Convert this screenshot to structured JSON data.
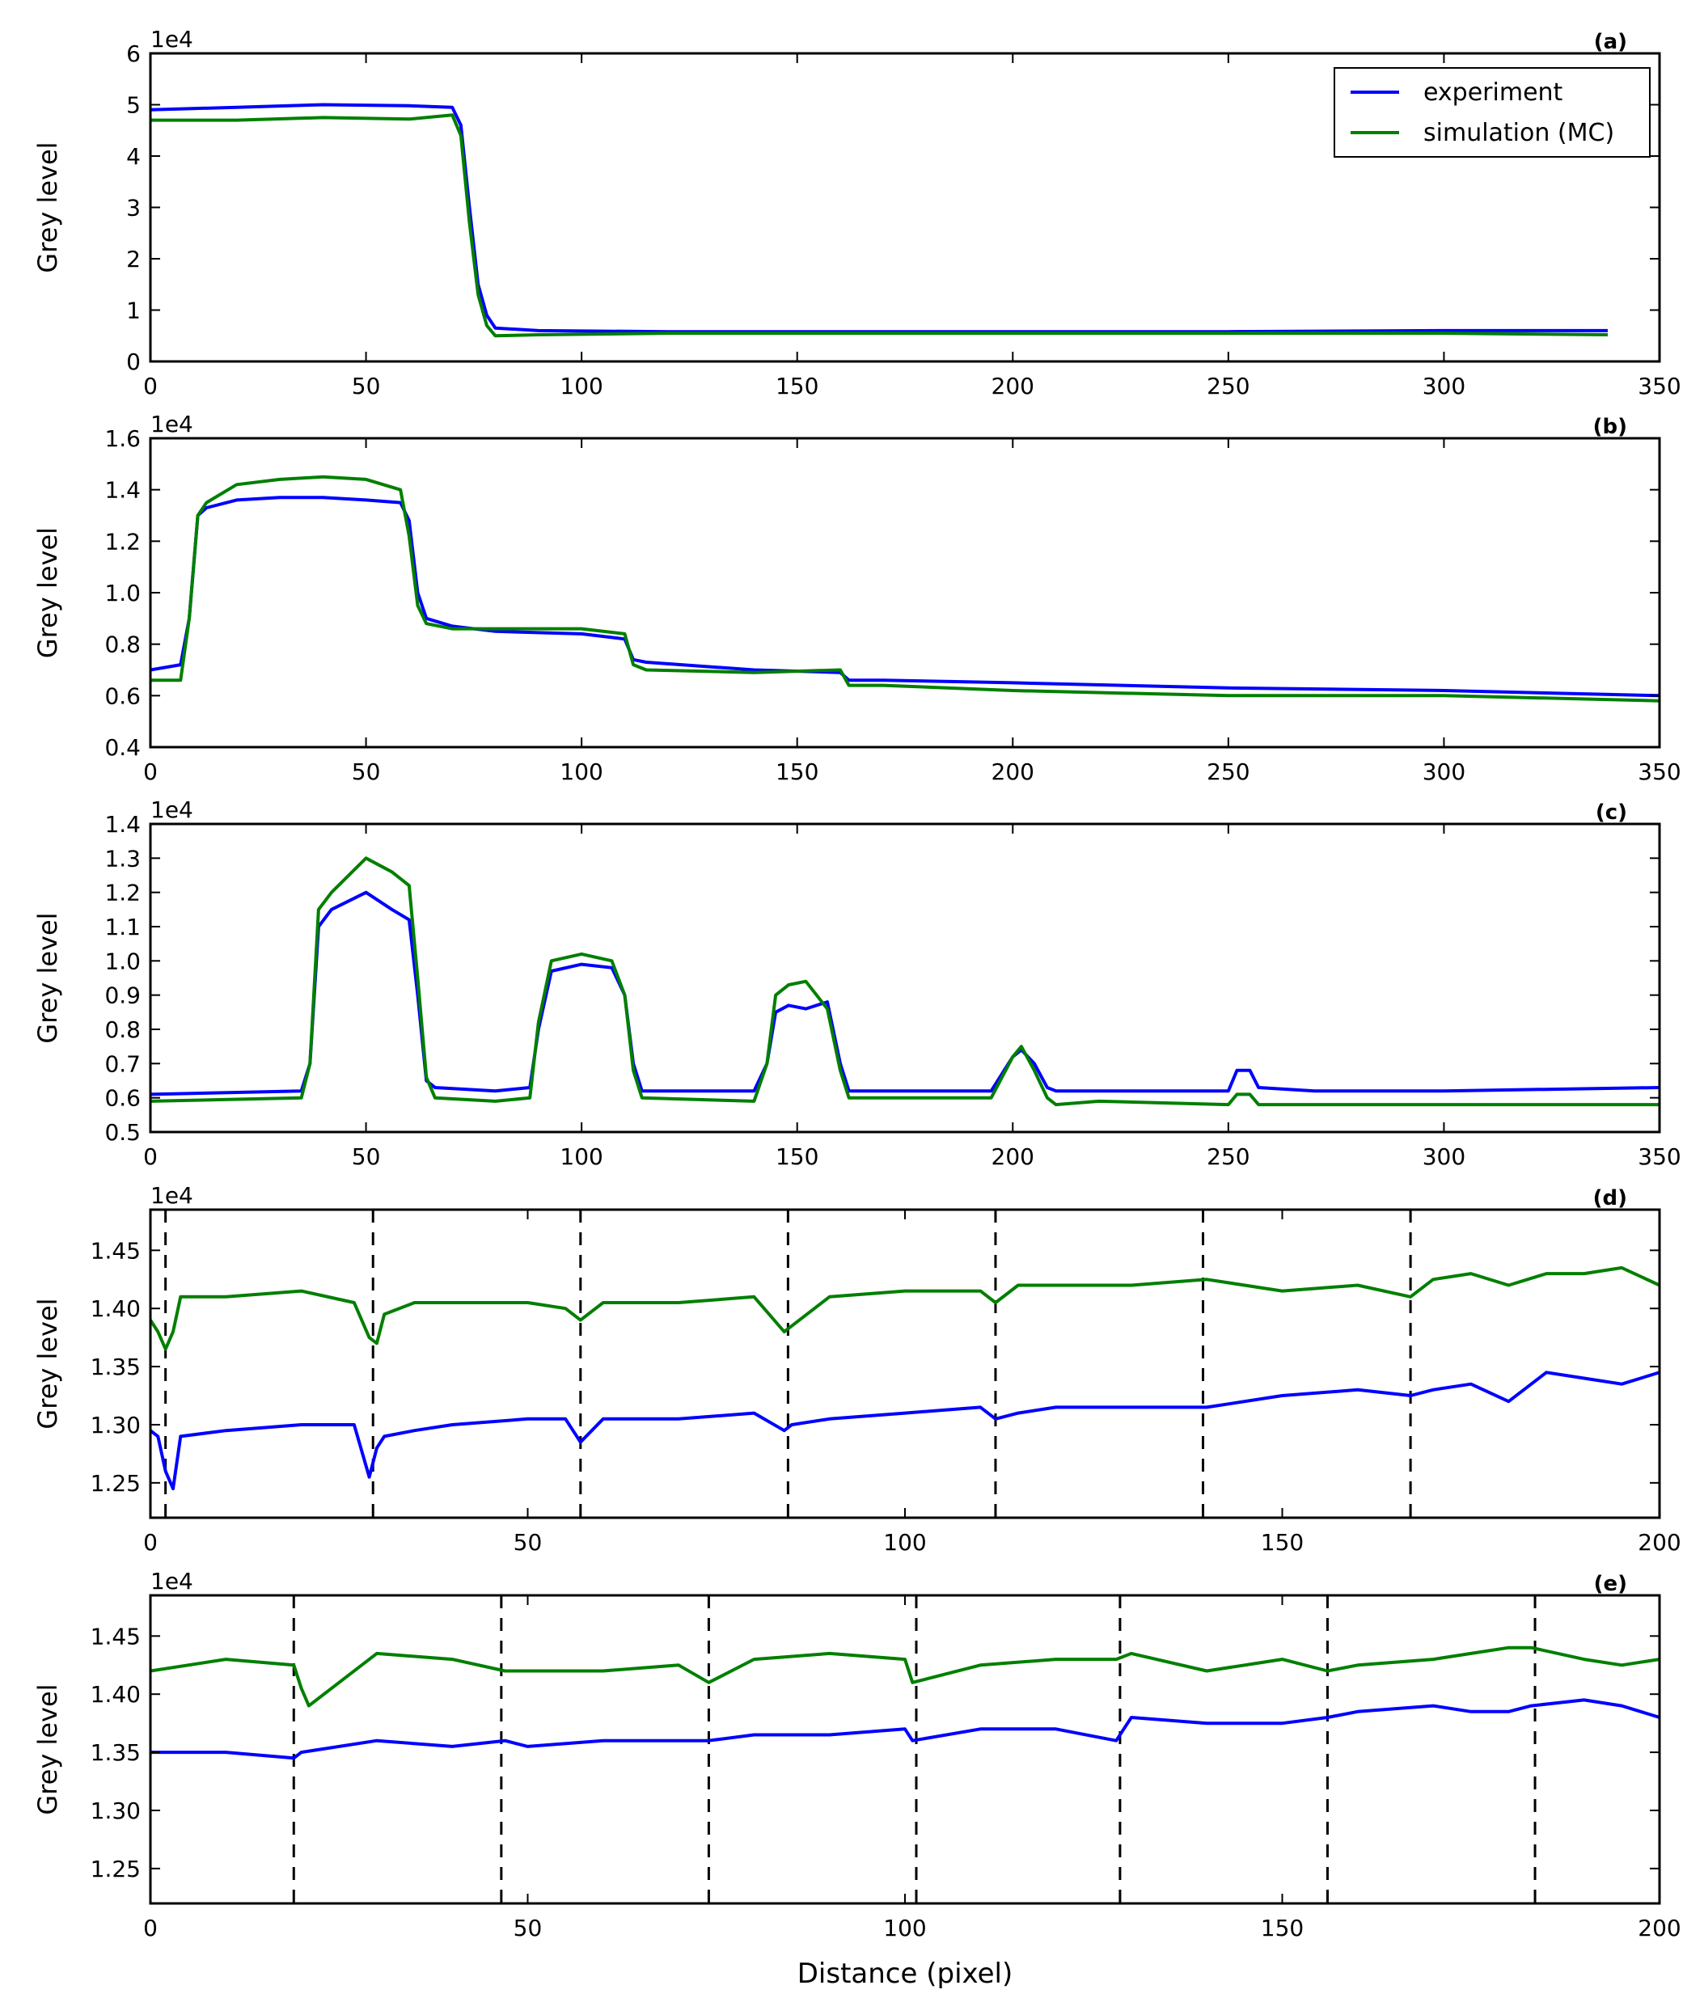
{
  "colors": {
    "experiment": "#0000ff",
    "simulation": "#007f00",
    "axes": "#000000",
    "vline": "#000000"
  },
  "chart_data": [
    {
      "type": "line",
      "panel_label": "(a)",
      "ylabel": "Grey level",
      "xlabel": "",
      "multiplier": "1e4",
      "xlim": [
        0,
        350
      ],
      "ylim": [
        0,
        6
      ],
      "xticks": [
        "0",
        "50",
        "100",
        "150",
        "200",
        "250",
        "300",
        "350"
      ],
      "yticks": [
        "0",
        "1",
        "2",
        "3",
        "4",
        "5",
        "6"
      ],
      "legend": {
        "position": "top-right",
        "entries": [
          "experiment",
          "simulation (MC)"
        ]
      },
      "series": [
        {
          "name": "experiment",
          "x": [
            0,
            20,
            40,
            60,
            70,
            72,
            74,
            76,
            78,
            80,
            90,
            120,
            150,
            200,
            250,
            300,
            338
          ],
          "y": [
            4.9,
            4.95,
            5.0,
            4.98,
            4.95,
            4.6,
            3.0,
            1.5,
            0.9,
            0.65,
            0.6,
            0.58,
            0.58,
            0.58,
            0.58,
            0.6,
            0.6
          ]
        },
        {
          "name": "simulation (MC)",
          "x": [
            0,
            20,
            40,
            60,
            70,
            72,
            74,
            76,
            78,
            80,
            90,
            120,
            150,
            200,
            250,
            300,
            338
          ],
          "y": [
            4.7,
            4.7,
            4.75,
            4.72,
            4.8,
            4.4,
            2.7,
            1.3,
            0.7,
            0.5,
            0.52,
            0.55,
            0.55,
            0.55,
            0.55,
            0.55,
            0.52
          ]
        }
      ],
      "vlines": []
    },
    {
      "type": "line",
      "panel_label": "(b)",
      "ylabel": "Grey level",
      "xlabel": "",
      "multiplier": "1e4",
      "xlim": [
        0,
        350
      ],
      "ylim": [
        0.4,
        1.6
      ],
      "xticks": [
        "0",
        "50",
        "100",
        "150",
        "200",
        "250",
        "300",
        "350"
      ],
      "yticks": [
        "0.4",
        "0.6",
        "0.8",
        "1.0",
        "1.2",
        "1.4",
        "1.6"
      ],
      "series": [
        {
          "name": "experiment",
          "x": [
            0,
            7,
            9,
            11,
            13,
            20,
            30,
            40,
            50,
            58,
            60,
            62,
            64,
            70,
            80,
            100,
            110,
            112,
            115,
            140,
            160,
            162,
            170,
            200,
            250,
            300,
            350
          ],
          "y": [
            0.7,
            0.72,
            0.9,
            1.3,
            1.33,
            1.36,
            1.37,
            1.37,
            1.36,
            1.35,
            1.28,
            1.0,
            0.9,
            0.87,
            0.85,
            0.84,
            0.82,
            0.74,
            0.73,
            0.7,
            0.69,
            0.66,
            0.66,
            0.65,
            0.63,
            0.62,
            0.6
          ]
        },
        {
          "name": "simulation (MC)",
          "x": [
            0,
            7,
            9,
            11,
            13,
            20,
            30,
            40,
            50,
            58,
            60,
            62,
            64,
            70,
            80,
            100,
            110,
            112,
            115,
            140,
            160,
            162,
            170,
            200,
            250,
            300,
            350
          ],
          "y": [
            0.66,
            0.66,
            0.9,
            1.3,
            1.35,
            1.42,
            1.44,
            1.45,
            1.44,
            1.4,
            1.22,
            0.95,
            0.88,
            0.86,
            0.86,
            0.86,
            0.84,
            0.72,
            0.7,
            0.69,
            0.7,
            0.64,
            0.64,
            0.62,
            0.6,
            0.6,
            0.58
          ]
        }
      ],
      "vlines": []
    },
    {
      "type": "line",
      "panel_label": "(c)",
      "ylabel": "Grey level",
      "xlabel": "",
      "multiplier": "1e4",
      "xlim": [
        0,
        350
      ],
      "ylim": [
        0.5,
        1.4
      ],
      "xticks": [
        "0",
        "50",
        "100",
        "150",
        "200",
        "250",
        "300",
        "350"
      ],
      "yticks": [
        "0.5",
        "0.6",
        "0.7",
        "0.8",
        "0.9",
        "1.0",
        "1.1",
        "1.2",
        "1.3",
        "1.4"
      ],
      "series": [
        {
          "name": "experiment",
          "x": [
            0,
            35,
            37,
            39,
            42,
            50,
            56,
            60,
            62,
            64,
            66,
            80,
            88,
            90,
            93,
            100,
            107,
            110,
            112,
            114,
            140,
            143,
            145,
            148,
            152,
            157,
            160,
            162,
            180,
            195,
            200,
            202,
            205,
            208,
            210,
            220,
            250,
            252,
            255,
            257,
            270,
            300,
            350
          ],
          "y": [
            0.61,
            0.62,
            0.7,
            1.1,
            1.15,
            1.2,
            1.15,
            1.12,
            0.9,
            0.65,
            0.63,
            0.62,
            0.63,
            0.8,
            0.97,
            0.99,
            0.98,
            0.9,
            0.7,
            0.62,
            0.62,
            0.7,
            0.85,
            0.87,
            0.86,
            0.88,
            0.7,
            0.62,
            0.62,
            0.62,
            0.72,
            0.74,
            0.7,
            0.63,
            0.62,
            0.62,
            0.62,
            0.68,
            0.68,
            0.63,
            0.62,
            0.62,
            0.63
          ]
        },
        {
          "name": "simulation (MC)",
          "x": [
            0,
            35,
            37,
            39,
            42,
            50,
            56,
            60,
            62,
            64,
            66,
            80,
            88,
            90,
            93,
            100,
            107,
            110,
            112,
            114,
            140,
            143,
            145,
            148,
            152,
            157,
            160,
            162,
            180,
            195,
            200,
            202,
            205,
            208,
            210,
            220,
            250,
            252,
            255,
            257,
            270,
            300,
            350
          ],
          "y": [
            0.59,
            0.6,
            0.7,
            1.15,
            1.2,
            1.3,
            1.26,
            1.22,
            0.95,
            0.66,
            0.6,
            0.59,
            0.6,
            0.82,
            1.0,
            1.02,
            1.0,
            0.9,
            0.68,
            0.6,
            0.59,
            0.7,
            0.9,
            0.93,
            0.94,
            0.86,
            0.68,
            0.6,
            0.6,
            0.6,
            0.72,
            0.75,
            0.68,
            0.6,
            0.58,
            0.59,
            0.58,
            0.61,
            0.61,
            0.58,
            0.58,
            0.58,
            0.58
          ]
        }
      ],
      "vlines": []
    },
    {
      "type": "line",
      "panel_label": "(d)",
      "ylabel": "Grey level",
      "xlabel": "",
      "multiplier": "1e4",
      "xlim": [
        0,
        200
      ],
      "ylim": [
        1.22,
        1.485
      ],
      "xticks": [
        "0",
        "50",
        "100",
        "150",
        "200"
      ],
      "yticks": [
        "1.25",
        "1.30",
        "1.35",
        "1.40",
        "1.45"
      ],
      "series": [
        {
          "name": "experiment",
          "x": [
            0,
            1,
            2,
            3,
            4,
            10,
            20,
            27,
            29,
            30,
            31,
            35,
            40,
            50,
            55,
            57,
            60,
            70,
            80,
            84,
            85,
            90,
            100,
            110,
            112,
            115,
            120,
            130,
            140,
            150,
            160,
            167,
            170,
            175,
            180,
            185,
            190,
            195,
            200
          ],
          "y": [
            1.295,
            1.29,
            1.26,
            1.245,
            1.29,
            1.295,
            1.3,
            1.3,
            1.255,
            1.28,
            1.29,
            1.295,
            1.3,
            1.305,
            1.305,
            1.285,
            1.305,
            1.305,
            1.31,
            1.295,
            1.3,
            1.305,
            1.31,
            1.315,
            1.305,
            1.31,
            1.315,
            1.315,
            1.315,
            1.325,
            1.33,
            1.325,
            1.33,
            1.335,
            1.32,
            1.345,
            1.34,
            1.335,
            1.345
          ]
        },
        {
          "name": "simulation (MC)",
          "x": [
            0,
            1,
            2,
            3,
            4,
            10,
            20,
            27,
            29,
            30,
            31,
            35,
            40,
            50,
            55,
            57,
            60,
            70,
            80,
            84,
            85,
            90,
            100,
            110,
            112,
            115,
            120,
            130,
            140,
            150,
            160,
            167,
            170,
            175,
            180,
            185,
            190,
            195,
            200
          ],
          "y": [
            1.39,
            1.38,
            1.365,
            1.38,
            1.41,
            1.41,
            1.415,
            1.405,
            1.375,
            1.37,
            1.395,
            1.405,
            1.405,
            1.405,
            1.4,
            1.39,
            1.405,
            1.405,
            1.41,
            1.38,
            1.385,
            1.41,
            1.415,
            1.415,
            1.405,
            1.42,
            1.42,
            1.42,
            1.425,
            1.415,
            1.42,
            1.41,
            1.425,
            1.43,
            1.42,
            1.43,
            1.43,
            1.435,
            1.42
          ]
        }
      ],
      "vlines": [
        2,
        29.5,
        57,
        84.5,
        112,
        139.5,
        167
      ]
    },
    {
      "type": "line",
      "panel_label": "(e)",
      "ylabel": "Grey level",
      "xlabel": "Distance (pixel)",
      "multiplier": "1e4",
      "xlim": [
        0,
        200
      ],
      "ylim": [
        1.22,
        1.485
      ],
      "xticks": [
        "0",
        "50",
        "100",
        "150",
        "200"
      ],
      "yticks": [
        "1.25",
        "1.30",
        "1.35",
        "1.40",
        "1.45"
      ],
      "series": [
        {
          "name": "experiment",
          "x": [
            0,
            10,
            19,
            20,
            30,
            40,
            47,
            50,
            60,
            70,
            74,
            80,
            90,
            100,
            101,
            110,
            120,
            128,
            130,
            140,
            150,
            156,
            160,
            170,
            175,
            180,
            183,
            190,
            195,
            200
          ],
          "y": [
            1.35,
            1.35,
            1.345,
            1.35,
            1.36,
            1.355,
            1.36,
            1.355,
            1.36,
            1.36,
            1.36,
            1.365,
            1.365,
            1.37,
            1.36,
            1.37,
            1.37,
            1.36,
            1.38,
            1.375,
            1.375,
            1.38,
            1.385,
            1.39,
            1.385,
            1.385,
            1.39,
            1.395,
            1.39,
            1.38
          ]
        },
        {
          "name": "simulation (MC)",
          "x": [
            0,
            10,
            19,
            20,
            21,
            30,
            40,
            47,
            50,
            60,
            70,
            74,
            80,
            90,
            100,
            101,
            110,
            120,
            128,
            130,
            140,
            150,
            156,
            160,
            170,
            175,
            180,
            183,
            190,
            195,
            200
          ],
          "y": [
            1.42,
            1.43,
            1.425,
            1.405,
            1.39,
            1.435,
            1.43,
            1.42,
            1.42,
            1.42,
            1.425,
            1.41,
            1.43,
            1.435,
            1.43,
            1.41,
            1.425,
            1.43,
            1.43,
            1.435,
            1.42,
            1.43,
            1.42,
            1.425,
            1.43,
            1.435,
            1.44,
            1.44,
            1.43,
            1.425,
            1.43
          ]
        }
      ],
      "vlines": [
        19,
        46.5,
        74,
        101.5,
        128.5,
        156,
        183.5
      ]
    }
  ]
}
